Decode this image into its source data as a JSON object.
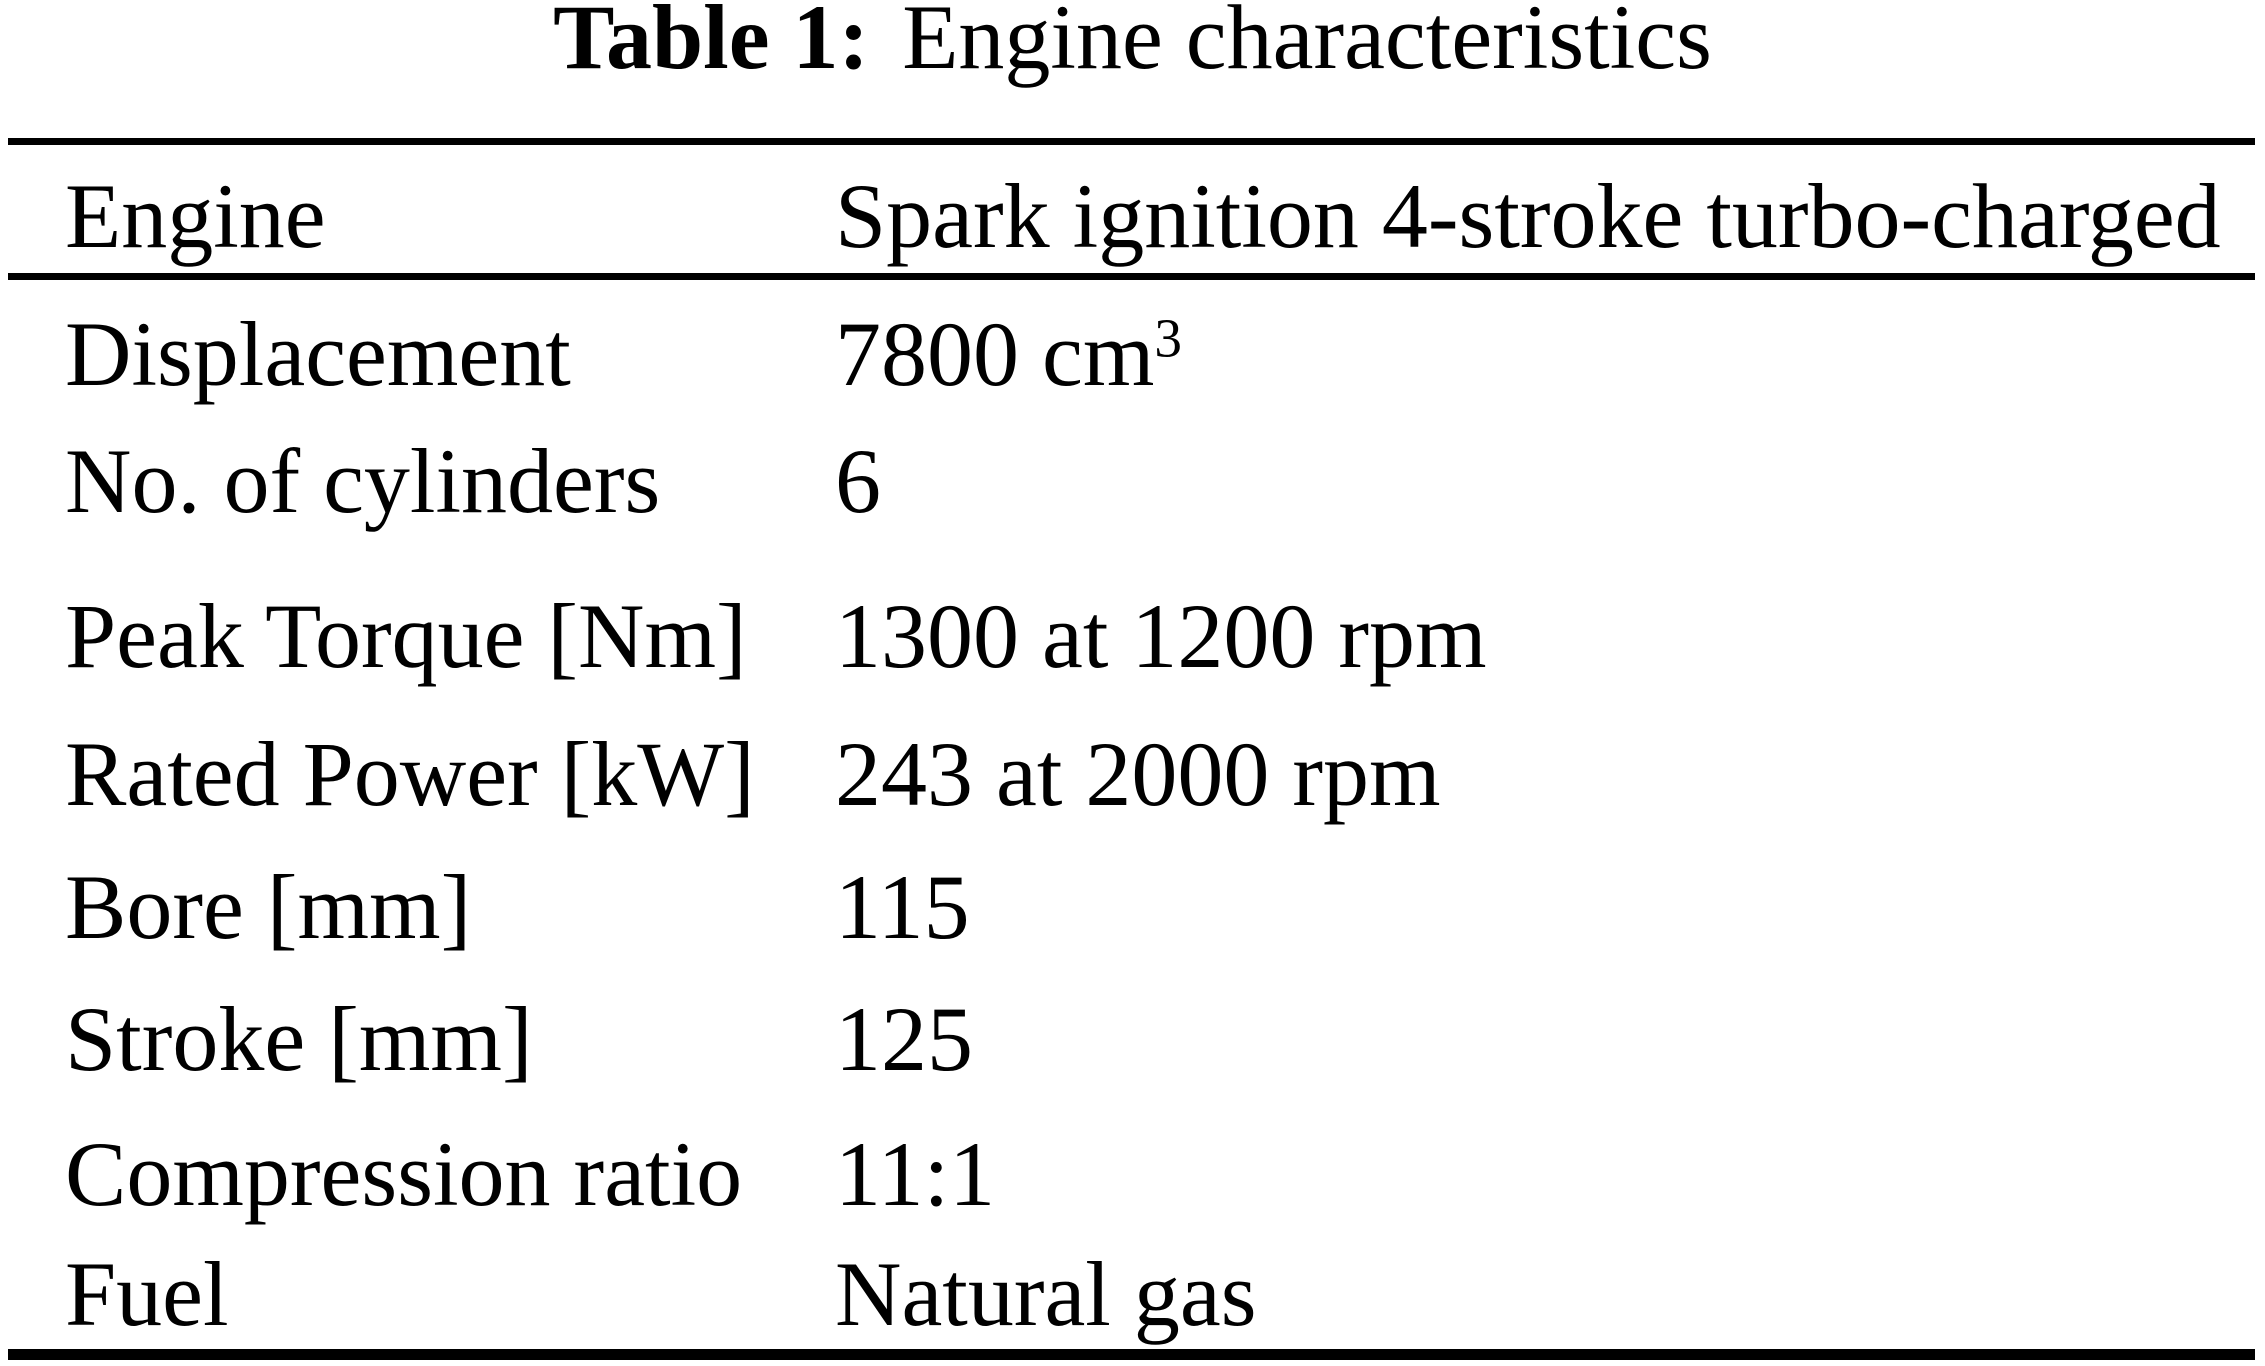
{
  "caption": {
    "label": "Table 1:",
    "text": "Engine characteristics"
  },
  "table": {
    "rows": [
      {
        "label": "Engine",
        "value": "Spark ignition 4-stroke turbo-charged"
      },
      {
        "label": "Displacement",
        "value": "7800 cm",
        "value_sup": "3"
      },
      {
        "label": "No. of cylinders",
        "value": "6"
      },
      {
        "label": "Peak Torque [Nm]",
        "value": "1300 at 1200 rpm"
      },
      {
        "label": "Rated Power [kW]",
        "value": "243 at 2000 rpm"
      },
      {
        "label": "Bore [mm]",
        "value": "115"
      },
      {
        "label": "Stroke [mm]",
        "value": "125"
      },
      {
        "label": "Compression ratio",
        "value": "11:1"
      },
      {
        "label": "Fuel",
        "value": "Natural gas"
      }
    ]
  },
  "colors": {
    "background": "#ffffff",
    "text": "#000000",
    "rule": "#000000"
  }
}
